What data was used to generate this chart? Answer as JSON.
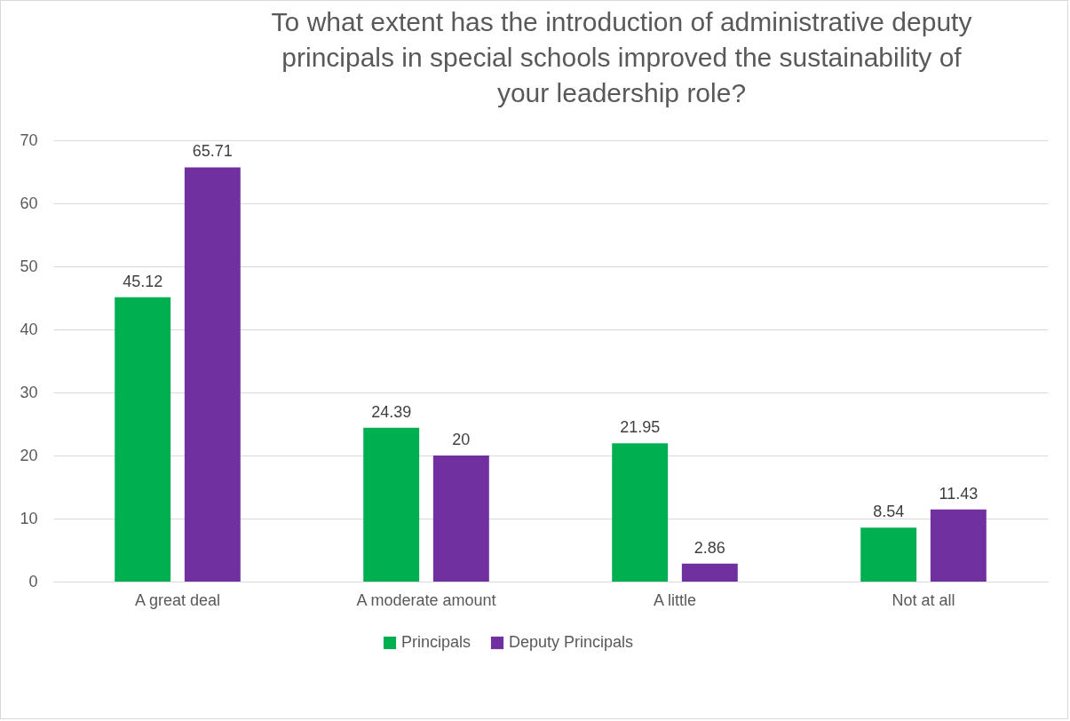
{
  "chart_data": {
    "type": "bar",
    "title": "To what extent has the introduction of administrative deputy principals in special schools improved the sustainability of your leadership role?",
    "categories": [
      "A great deal",
      "A moderate amount",
      "A little",
      "Not at all"
    ],
    "series": [
      {
        "name": "Principals",
        "color": "#00b050",
        "values": [
          45.12,
          24.39,
          21.95,
          8.54
        ]
      },
      {
        "name": "Deputy Principals",
        "color": "#7030a0",
        "values": [
          65.71,
          20,
          2.86,
          11.43
        ]
      }
    ],
    "ylim": [
      0,
      70
    ],
    "yticks": [
      0,
      10,
      20,
      30,
      40,
      50,
      60,
      70
    ],
    "grid": "y",
    "legend": "bottom",
    "data_labels": true
  }
}
